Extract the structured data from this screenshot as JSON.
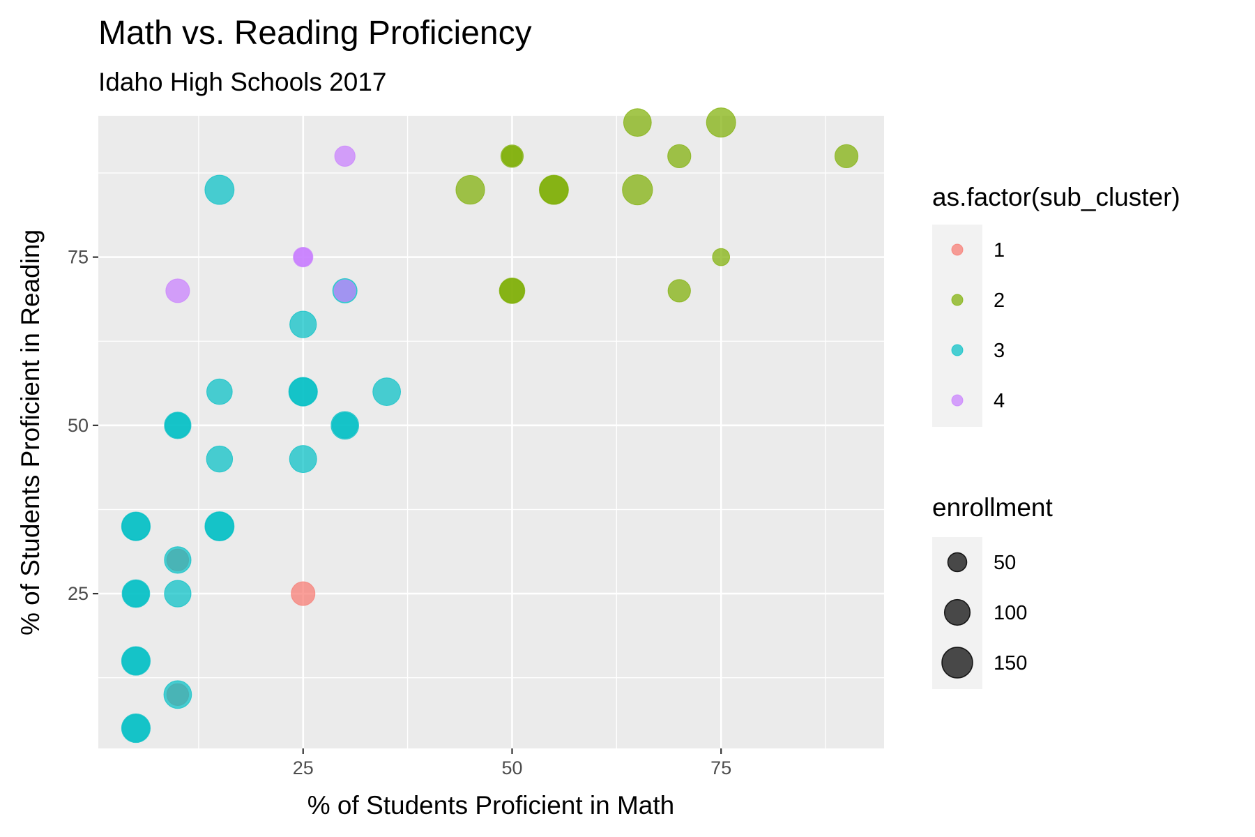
{
  "chart_data": {
    "type": "scatter",
    "title": "Math vs. Reading Proficiency",
    "subtitle": "Idaho High Schools 2017",
    "xlabel": "% of Students Proficient in Math",
    "ylabel": "% of Students Proficient in Reading",
    "xlim": [
      0.5,
      94.5
    ],
    "ylim": [
      2,
      96
    ],
    "x_ticks": [
      25,
      50,
      75
    ],
    "x_minor_ticks": [
      12.5,
      37.5,
      62.5,
      87.5
    ],
    "y_ticks": [
      25,
      50,
      75
    ],
    "y_minor_ticks": [
      12.5,
      37.5,
      62.5,
      87.5
    ],
    "color_legend": {
      "title": "as.factor(sub_cluster)",
      "position": "right",
      "entries": [
        {
          "label": "1",
          "color": "#F8766D"
        },
        {
          "label": "2",
          "color": "#7CAE00"
        },
        {
          "label": "3",
          "color": "#00BFC4"
        },
        {
          "label": "4",
          "color": "#C77CFF"
        }
      ]
    },
    "size_legend": {
      "title": "enrollment",
      "position": "right",
      "entries": [
        {
          "label": "50",
          "value": 50
        },
        {
          "label": "100",
          "value": 100
        },
        {
          "label": "150",
          "value": 150
        }
      ]
    },
    "point_alpha": 0.7,
    "series": [
      {
        "name": "1",
        "color": "#F8766D",
        "points": [
          {
            "x": 10,
            "y": 30,
            "enrollment": 70
          },
          {
            "x": 25,
            "y": 25,
            "enrollment": 85
          },
          {
            "x": 10,
            "y": 10,
            "enrollment": 70
          }
        ]
      },
      {
        "name": "2",
        "color": "#7CAE00",
        "points": [
          {
            "x": 65,
            "y": 95,
            "enrollment": 120
          },
          {
            "x": 75,
            "y": 95,
            "enrollment": 135
          },
          {
            "x": 50,
            "y": 90,
            "enrollment": 75
          },
          {
            "x": 50,
            "y": 90,
            "enrollment": 60
          },
          {
            "x": 70,
            "y": 90,
            "enrollment": 80
          },
          {
            "x": 90,
            "y": 90,
            "enrollment": 80
          },
          {
            "x": 45,
            "y": 85,
            "enrollment": 130
          },
          {
            "x": 55,
            "y": 85,
            "enrollment": 135
          },
          {
            "x": 55,
            "y": 85,
            "enrollment": 125
          },
          {
            "x": 65,
            "y": 85,
            "enrollment": 145
          },
          {
            "x": 75,
            "y": 75,
            "enrollment": 40
          },
          {
            "x": 50,
            "y": 70,
            "enrollment": 100
          },
          {
            "x": 50,
            "y": 70,
            "enrollment": 90
          },
          {
            "x": 70,
            "y": 70,
            "enrollment": 75
          }
        ]
      },
      {
        "name": "3",
        "color": "#00BFC4",
        "points": [
          {
            "x": 15,
            "y": 85,
            "enrollment": 135
          },
          {
            "x": 30,
            "y": 70,
            "enrollment": 90
          },
          {
            "x": 25,
            "y": 65,
            "enrollment": 110
          },
          {
            "x": 15,
            "y": 55,
            "enrollment": 100
          },
          {
            "x": 25,
            "y": 55,
            "enrollment": 130
          },
          {
            "x": 25,
            "y": 55,
            "enrollment": 120
          },
          {
            "x": 35,
            "y": 55,
            "enrollment": 120
          },
          {
            "x": 10,
            "y": 50,
            "enrollment": 110
          },
          {
            "x": 10,
            "y": 50,
            "enrollment": 95
          },
          {
            "x": 30,
            "y": 50,
            "enrollment": 120
          },
          {
            "x": 30,
            "y": 50,
            "enrollment": 100
          },
          {
            "x": 15,
            "y": 45,
            "enrollment": 105
          },
          {
            "x": 25,
            "y": 45,
            "enrollment": 115
          },
          {
            "x": 5,
            "y": 35,
            "enrollment": 130
          },
          {
            "x": 5,
            "y": 35,
            "enrollment": 120
          },
          {
            "x": 15,
            "y": 35,
            "enrollment": 135
          },
          {
            "x": 15,
            "y": 35,
            "enrollment": 125
          },
          {
            "x": 10,
            "y": 30,
            "enrollment": 110
          },
          {
            "x": 5,
            "y": 25,
            "enrollment": 120
          },
          {
            "x": 5,
            "y": 25,
            "enrollment": 105
          },
          {
            "x": 10,
            "y": 25,
            "enrollment": 110
          },
          {
            "x": 5,
            "y": 15,
            "enrollment": 130
          },
          {
            "x": 5,
            "y": 15,
            "enrollment": 115
          },
          {
            "x": 10,
            "y": 10,
            "enrollment": 120
          },
          {
            "x": 5,
            "y": 5,
            "enrollment": 130
          },
          {
            "x": 5,
            "y": 5,
            "enrollment": 115
          }
        ]
      },
      {
        "name": "4",
        "color": "#C77CFF",
        "points": [
          {
            "x": 30,
            "y": 90,
            "enrollment": 60
          },
          {
            "x": 25,
            "y": 75,
            "enrollment": 55
          },
          {
            "x": 25,
            "y": 75,
            "enrollment": 45
          },
          {
            "x": 10,
            "y": 70,
            "enrollment": 85
          },
          {
            "x": 30,
            "y": 70,
            "enrollment": 70
          }
        ]
      }
    ]
  }
}
